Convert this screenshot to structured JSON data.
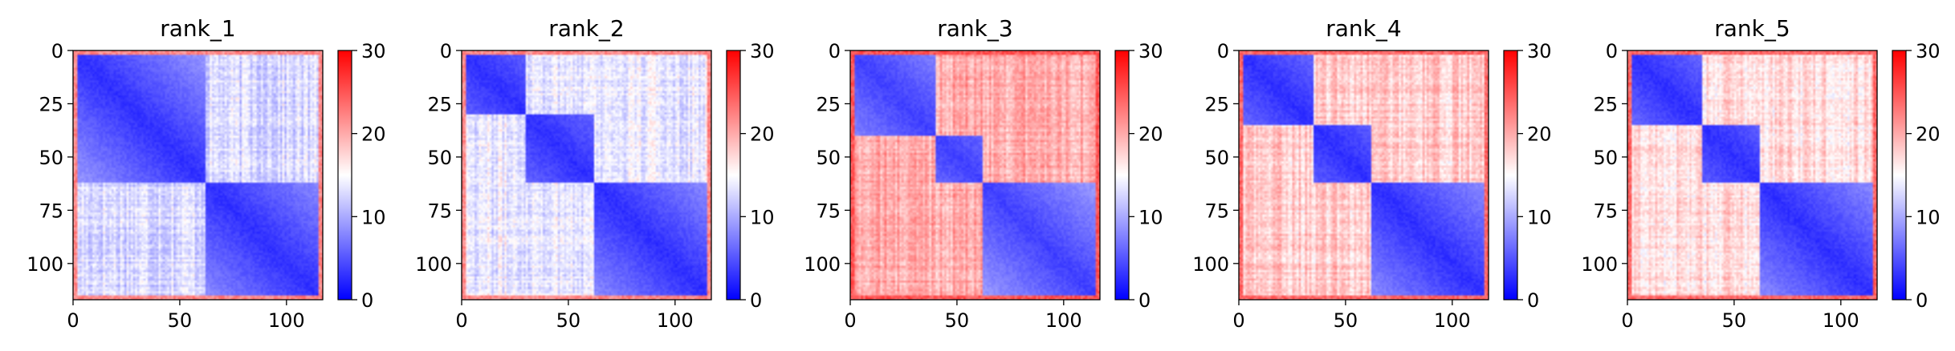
{
  "colormap": {
    "low": "#0000ff",
    "mid": "#ffffff",
    "high": "#ff0000"
  },
  "chart_data": [
    {
      "type": "heatmap",
      "title": "rank_1",
      "size": 117,
      "xticks": [
        "0",
        "50",
        "100"
      ],
      "yticks": [
        "0",
        "25",
        "50",
        "75",
        "100"
      ],
      "colorbar": {
        "min": 0,
        "max": 30,
        "ticks": [
          "0",
          "10",
          "20",
          "30"
        ]
      },
      "domains": [
        [
          0,
          62
        ],
        [
          62,
          117
        ]
      ],
      "levels": {
        "intra": 2,
        "inter": 13,
        "edge": 22,
        "gradient": 6
      }
    },
    {
      "type": "heatmap",
      "title": "rank_2",
      "size": 117,
      "xticks": [
        "0",
        "50",
        "100"
      ],
      "yticks": [
        "0",
        "25",
        "50",
        "75",
        "100"
      ],
      "colorbar": {
        "min": 0,
        "max": 30,
        "ticks": [
          "0",
          "10",
          "20",
          "30"
        ]
      },
      "domains": [
        [
          0,
          30
        ],
        [
          30,
          62
        ],
        [
          62,
          117
        ]
      ],
      "levels": {
        "intra": 2,
        "inter": 14,
        "edge": 22,
        "gradient": 6
      }
    },
    {
      "type": "heatmap",
      "title": "rank_3",
      "size": 117,
      "xticks": [
        "0",
        "50",
        "100"
      ],
      "yticks": [
        "0",
        "25",
        "50",
        "75",
        "100"
      ],
      "colorbar": {
        "min": 0,
        "max": 30,
        "ticks": [
          "0",
          "10",
          "20",
          "30"
        ]
      },
      "domains": [
        [
          0,
          40
        ],
        [
          40,
          62
        ],
        [
          62,
          117
        ]
      ],
      "levels": {
        "intra": 3,
        "inter": 20,
        "edge": 25,
        "gradient": 6
      }
    },
    {
      "type": "heatmap",
      "title": "rank_4",
      "size": 117,
      "xticks": [
        "0",
        "50",
        "100"
      ],
      "yticks": [
        "0",
        "25",
        "50",
        "75",
        "100"
      ],
      "colorbar": {
        "min": 0,
        "max": 30,
        "ticks": [
          "0",
          "10",
          "20",
          "30"
        ]
      },
      "domains": [
        [
          0,
          35
        ],
        [
          35,
          62
        ],
        [
          62,
          117
        ]
      ],
      "levels": {
        "intra": 2,
        "inter": 18,
        "edge": 24,
        "gradient": 6
      }
    },
    {
      "type": "heatmap",
      "title": "rank_5",
      "size": 117,
      "xticks": [
        "0",
        "50",
        "100"
      ],
      "yticks": [
        "0",
        "25",
        "50",
        "75",
        "100"
      ],
      "colorbar": {
        "min": 0,
        "max": 30,
        "ticks": [
          "0",
          "10",
          "20",
          "30"
        ]
      },
      "domains": [
        [
          0,
          35
        ],
        [
          35,
          62
        ],
        [
          62,
          117
        ]
      ],
      "levels": {
        "intra": 2,
        "inter": 17,
        "edge": 24,
        "gradient": 6
      }
    }
  ]
}
